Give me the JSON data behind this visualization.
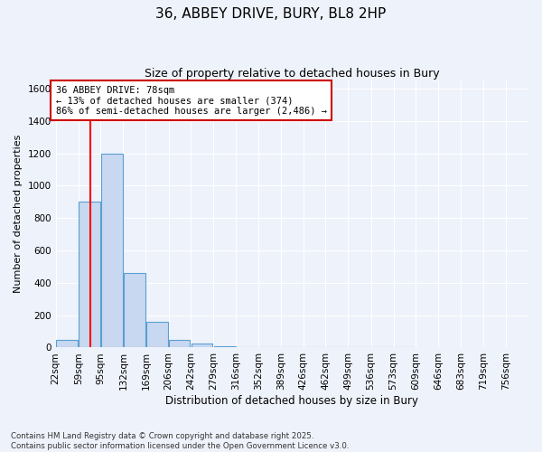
{
  "title1": "36, ABBEY DRIVE, BURY, BL8 2HP",
  "title2": "Size of property relative to detached houses in Bury",
  "xlabel": "Distribution of detached houses by size in Bury",
  "ylabel": "Number of detached properties",
  "bin_labels": [
    "22sqm",
    "59sqm",
    "95sqm",
    "132sqm",
    "169sqm",
    "206sqm",
    "242sqm",
    "279sqm",
    "316sqm",
    "352sqm",
    "389sqm",
    "426sqm",
    "462sqm",
    "499sqm",
    "536sqm",
    "573sqm",
    "609sqm",
    "646sqm",
    "683sqm",
    "719sqm",
    "756sqm"
  ],
  "bar_heights": [
    50,
    900,
    1200,
    460,
    160,
    50,
    25,
    10,
    5,
    3,
    2,
    1,
    1,
    1,
    1,
    1,
    0,
    0,
    0,
    0,
    0
  ],
  "bar_color": "#c8d8f0",
  "bar_edge_color": "#5a9fd4",
  "red_line_x": 78,
  "bin_edges": [
    22,
    59,
    95,
    132,
    169,
    206,
    242,
    279,
    316,
    352,
    389,
    426,
    462,
    499,
    536,
    573,
    609,
    646,
    683,
    719,
    756,
    793
  ],
  "annotation_title": "36 ABBEY DRIVE: 78sqm",
  "annotation_line1": "← 13% of detached houses are smaller (374)",
  "annotation_line2": "86% of semi-detached houses are larger (2,486) →",
  "annotation_box_color": "#ffffff",
  "annotation_box_edge": "#cc0000",
  "ylim": [
    0,
    1650
  ],
  "yticks": [
    0,
    200,
    400,
    600,
    800,
    1000,
    1200,
    1400,
    1600
  ],
  "footer1": "Contains HM Land Registry data © Crown copyright and database right 2025.",
  "footer2": "Contains public sector information licensed under the Open Government Licence v3.0.",
  "background_color": "#eef2fb",
  "grid_color": "#ffffff"
}
